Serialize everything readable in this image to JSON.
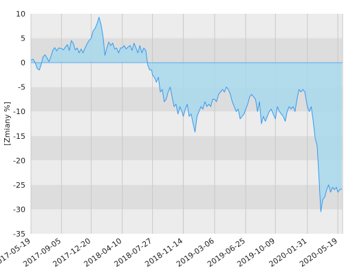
{
  "chart_data": {
    "type": "area",
    "ylabel": "[Zmiany %]",
    "ylim": [
      -35,
      10
    ],
    "yticks": [
      10,
      5,
      0,
      -5,
      -10,
      -15,
      -20,
      -25,
      -30,
      -35
    ],
    "xlim": [
      "2017-05-19",
      "2020-06-05"
    ],
    "xticks": [
      "2017-05-19",
      "2017-09-05",
      "2017-12-20",
      "2018-04-10",
      "2018-07-27",
      "2018-11-14",
      "2019-03-06",
      "2019-06-25",
      "2019-10-09",
      "2020-01-31",
      "2020-05-19"
    ],
    "grid": true,
    "colors": {
      "line": "#3399ee",
      "fill": "#a8d8ec",
      "band_light": "#ececec",
      "band_dark": "#dddddd",
      "gridline": "#c8c8c8"
    },
    "series": [
      {
        "points": [
          [
            "2017-05-19",
            0.5
          ],
          [
            "2017-05-27",
            0.7
          ],
          [
            "2017-06-03",
            0.0
          ],
          [
            "2017-06-10",
            -1.2
          ],
          [
            "2017-06-18",
            -1.5
          ],
          [
            "2017-06-24",
            -0.5
          ],
          [
            "2017-07-01",
            1.2
          ],
          [
            "2017-07-08",
            1.6
          ],
          [
            "2017-07-15",
            1.0
          ],
          [
            "2017-07-22",
            0.2
          ],
          [
            "2017-07-29",
            1.2
          ],
          [
            "2017-08-05",
            2.5
          ],
          [
            "2017-08-12",
            3.1
          ],
          [
            "2017-08-19",
            2.4
          ],
          [
            "2017-08-26",
            3.0
          ],
          [
            "2017-09-05",
            2.9
          ],
          [
            "2017-09-12",
            2.6
          ],
          [
            "2017-09-19",
            3.2
          ],
          [
            "2017-09-26",
            3.7
          ],
          [
            "2017-10-03",
            2.5
          ],
          [
            "2017-10-10",
            4.5
          ],
          [
            "2017-10-17",
            4.0
          ],
          [
            "2017-10-24",
            2.6
          ],
          [
            "2017-10-31",
            3.0
          ],
          [
            "2017-11-07",
            2.0
          ],
          [
            "2017-11-14",
            2.8
          ],
          [
            "2017-11-21",
            2.0
          ],
          [
            "2017-11-28",
            3.0
          ],
          [
            "2017-12-05",
            3.8
          ],
          [
            "2017-12-12",
            4.5
          ],
          [
            "2017-12-20",
            5.0
          ],
          [
            "2017-12-27",
            6.5
          ],
          [
            "2018-01-03",
            7.0
          ],
          [
            "2018-01-10",
            8.0
          ],
          [
            "2018-01-17",
            9.3
          ],
          [
            "2018-01-24",
            7.8
          ],
          [
            "2018-01-31",
            5.5
          ],
          [
            "2018-02-07",
            1.5
          ],
          [
            "2018-02-14",
            3.0
          ],
          [
            "2018-02-21",
            4.2
          ],
          [
            "2018-02-28",
            3.5
          ],
          [
            "2018-03-07",
            4.0
          ],
          [
            "2018-03-14",
            2.8
          ],
          [
            "2018-03-21",
            3.0
          ],
          [
            "2018-03-28",
            2.0
          ],
          [
            "2018-04-04",
            3.0
          ],
          [
            "2018-04-10",
            3.0
          ],
          [
            "2018-04-17",
            3.5
          ],
          [
            "2018-04-24",
            2.8
          ],
          [
            "2018-05-01",
            3.2
          ],
          [
            "2018-05-08",
            3.5
          ],
          [
            "2018-05-15",
            2.5
          ],
          [
            "2018-05-22",
            4.0
          ],
          [
            "2018-05-29",
            3.0
          ],
          [
            "2018-06-05",
            2.0
          ],
          [
            "2018-06-12",
            3.5
          ],
          [
            "2018-06-19",
            2.0
          ],
          [
            "2018-06-26",
            3.0
          ],
          [
            "2018-07-03",
            2.5
          ],
          [
            "2018-07-10",
            -0.5
          ],
          [
            "2018-07-17",
            -1.5
          ],
          [
            "2018-07-24",
            -1.5
          ],
          [
            "2018-07-27",
            -2.5
          ],
          [
            "2018-08-03",
            -3.0
          ],
          [
            "2018-08-10",
            -4.0
          ],
          [
            "2018-08-17",
            -3.0
          ],
          [
            "2018-08-24",
            -6.0
          ],
          [
            "2018-08-31",
            -5.5
          ],
          [
            "2018-09-07",
            -8.0
          ],
          [
            "2018-09-14",
            -7.5
          ],
          [
            "2018-09-21",
            -6.0
          ],
          [
            "2018-09-28",
            -5.0
          ],
          [
            "2018-10-05",
            -7.0
          ],
          [
            "2018-10-12",
            -9.0
          ],
          [
            "2018-10-19",
            -8.5
          ],
          [
            "2018-10-26",
            -10.5
          ],
          [
            "2018-11-02",
            -9.0
          ],
          [
            "2018-11-09",
            -10.0
          ],
          [
            "2018-11-14",
            -11.0
          ],
          [
            "2018-11-21",
            -9.5
          ],
          [
            "2018-11-28",
            -8.5
          ],
          [
            "2018-12-05",
            -11.0
          ],
          [
            "2018-12-12",
            -10.5
          ],
          [
            "2018-12-19",
            -12.5
          ],
          [
            "2018-12-26",
            -14.2
          ],
          [
            "2019-01-02",
            -11.0
          ],
          [
            "2019-01-09",
            -10.0
          ],
          [
            "2019-01-16",
            -9.0
          ],
          [
            "2019-01-23",
            -9.5
          ],
          [
            "2019-01-30",
            -8.0
          ],
          [
            "2019-02-06",
            -9.0
          ],
          [
            "2019-02-13",
            -8.5
          ],
          [
            "2019-02-20",
            -9.0
          ],
          [
            "2019-02-27",
            -7.5
          ],
          [
            "2019-03-06",
            -7.5
          ],
          [
            "2019-03-13",
            -8.0
          ],
          [
            "2019-03-20",
            -6.5
          ],
          [
            "2019-03-27",
            -6.0
          ],
          [
            "2019-04-03",
            -5.5
          ],
          [
            "2019-04-10",
            -6.0
          ],
          [
            "2019-04-17",
            -5.0
          ],
          [
            "2019-04-24",
            -5.5
          ],
          [
            "2019-05-01",
            -6.5
          ],
          [
            "2019-05-08",
            -8.0
          ],
          [
            "2019-05-15",
            -9.0
          ],
          [
            "2019-05-22",
            -10.0
          ],
          [
            "2019-05-29",
            -9.5
          ],
          [
            "2019-06-05",
            -11.5
          ],
          [
            "2019-06-12",
            -11.0
          ],
          [
            "2019-06-19",
            -10.5
          ],
          [
            "2019-06-25",
            -9.5
          ],
          [
            "2019-07-02",
            -8.5
          ],
          [
            "2019-07-09",
            -7.0
          ],
          [
            "2019-07-16",
            -6.5
          ],
          [
            "2019-07-23",
            -7.0
          ],
          [
            "2019-07-30",
            -7.5
          ],
          [
            "2019-08-06",
            -10.0
          ],
          [
            "2019-08-13",
            -8.0
          ],
          [
            "2019-08-20",
            -12.5
          ],
          [
            "2019-08-27",
            -11.0
          ],
          [
            "2019-09-03",
            -12.0
          ],
          [
            "2019-09-10",
            -11.0
          ],
          [
            "2019-09-17",
            -10.0
          ],
          [
            "2019-09-24",
            -9.5
          ],
          [
            "2019-10-01",
            -10.5
          ],
          [
            "2019-10-09",
            -11.5
          ],
          [
            "2019-10-16",
            -9.0
          ],
          [
            "2019-10-23",
            -10.0
          ],
          [
            "2019-10-30",
            -10.5
          ],
          [
            "2019-11-06",
            -11.0
          ],
          [
            "2019-11-13",
            -12.0
          ],
          [
            "2019-11-20",
            -10.0
          ],
          [
            "2019-11-27",
            -9.0
          ],
          [
            "2019-12-04",
            -9.5
          ],
          [
            "2019-12-11",
            -9.0
          ],
          [
            "2019-12-18",
            -10.0
          ],
          [
            "2019-12-25",
            -7.5
          ],
          [
            "2020-01-01",
            -5.5
          ],
          [
            "2020-01-08",
            -6.0
          ],
          [
            "2020-01-15",
            -5.5
          ],
          [
            "2020-01-22",
            -6.0
          ],
          [
            "2020-01-31",
            -9.0
          ],
          [
            "2020-02-07",
            -10.0
          ],
          [
            "2020-02-14",
            -9.0
          ],
          [
            "2020-02-21",
            -12.0
          ],
          [
            "2020-02-28",
            -15.5
          ],
          [
            "2020-03-06",
            -17.0
          ],
          [
            "2020-03-13",
            -24.0
          ],
          [
            "2020-03-19",
            -30.5
          ],
          [
            "2020-03-26",
            -28.0
          ],
          [
            "2020-04-02",
            -27.5
          ],
          [
            "2020-04-09",
            -26.0
          ],
          [
            "2020-04-16",
            -25.0
          ],
          [
            "2020-04-23",
            -26.5
          ],
          [
            "2020-04-30",
            -25.5
          ],
          [
            "2020-05-07",
            -26.0
          ],
          [
            "2020-05-14",
            -25.5
          ],
          [
            "2020-05-19",
            -26.5
          ],
          [
            "2020-05-26",
            -26.0
          ],
          [
            "2020-06-02",
            -25.8
          ]
        ]
      }
    ]
  }
}
